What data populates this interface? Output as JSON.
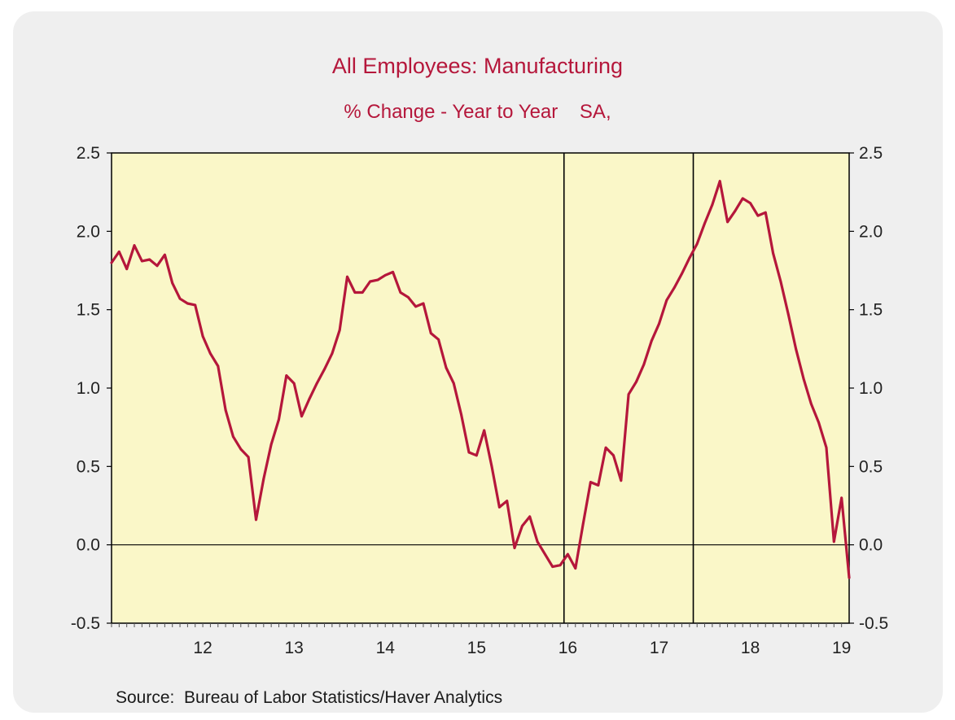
{
  "chart_data": {
    "type": "line",
    "title": "All Employees: Manufacturing",
    "subtitle": "% Change - Year to Year    SA,",
    "source": "Source:  Bureau of Labor Statistics/Haver Analytics",
    "xlabel": "",
    "ylabel": "",
    "ylim": [
      -0.5,
      2.5
    ],
    "yticks": [
      -0.5,
      0.0,
      0.5,
      1.0,
      1.5,
      2.0,
      2.5
    ],
    "ytick_labels": [
      "-0.5",
      "0.0",
      "0.5",
      "1.0",
      "1.5",
      "2.0",
      "2.5"
    ],
    "xlim": [
      2011.5,
      2019.5833
    ],
    "xtick_labels": [
      {
        "label": "12",
        "year": 2012
      },
      {
        "label": "13",
        "year": 2013
      },
      {
        "label": "14",
        "year": 2014
      },
      {
        "label": "15",
        "year": 2015
      },
      {
        "label": "16",
        "year": 2016
      },
      {
        "label": "17",
        "year": 2017
      },
      {
        "label": "18",
        "year": 2018
      },
      {
        "label": "19",
        "year": 2019
      }
    ],
    "vertical_markers": [
      2016.4583,
      2017.875
    ],
    "horizontal_reference": 0.0,
    "colors": {
      "series": "#b5173b",
      "plot_background": "#faf7c8",
      "title": "#b5173b",
      "axis": "#000000"
    },
    "series": [
      {
        "name": "All Employees: Manufacturing (% Change - Year to Year)",
        "x": [
          2011.5,
          2011.5833,
          2011.6667,
          2011.75,
          2011.8333,
          2011.9167,
          2012.0,
          2012.0833,
          2012.1667,
          2012.25,
          2012.3333,
          2012.4167,
          2012.5,
          2012.5833,
          2012.6667,
          2012.75,
          2012.8333,
          2012.9167,
          2013.0,
          2013.0833,
          2013.1667,
          2013.25,
          2013.3333,
          2013.4167,
          2013.5,
          2013.5833,
          2013.6667,
          2013.75,
          2013.8333,
          2013.9167,
          2014.0,
          2014.0833,
          2014.1667,
          2014.25,
          2014.3333,
          2014.4167,
          2014.5,
          2014.5833,
          2014.6667,
          2014.75,
          2014.8333,
          2014.9167,
          2015.0,
          2015.0833,
          2015.1667,
          2015.25,
          2015.3333,
          2015.4167,
          2015.5,
          2015.5833,
          2015.6667,
          2015.75,
          2015.8333,
          2015.9167,
          2016.0,
          2016.0833,
          2016.1667,
          2016.25,
          2016.3333,
          2016.4167,
          2016.5,
          2016.5833,
          2016.6667,
          2016.75,
          2016.8333,
          2016.9167,
          2017.0,
          2017.0833,
          2017.1667,
          2017.25,
          2017.3333,
          2017.4167,
          2017.5,
          2017.5833,
          2017.6667,
          2017.75,
          2017.8333,
          2017.9167,
          2018.0,
          2018.0833,
          2018.1667,
          2018.25,
          2018.3333,
          2018.4167,
          2018.5,
          2018.5833,
          2018.6667,
          2018.75,
          2018.8333,
          2018.9167,
          2019.0,
          2019.0833,
          2019.1667,
          2019.25,
          2019.3333,
          2019.4167,
          2019.5,
          2019.5833
        ],
        "values": [
          1.8,
          1.87,
          1.76,
          1.91,
          1.81,
          1.82,
          1.78,
          1.85,
          1.67,
          1.57,
          1.54,
          1.53,
          1.33,
          1.22,
          1.14,
          0.86,
          0.69,
          0.61,
          0.56,
          0.16,
          0.42,
          0.64,
          0.8,
          1.08,
          1.03,
          0.82,
          0.93,
          1.03,
          1.12,
          1.22,
          1.37,
          1.71,
          1.61,
          1.61,
          1.68,
          1.69,
          1.72,
          1.74,
          1.61,
          1.58,
          1.52,
          1.54,
          1.35,
          1.31,
          1.13,
          1.03,
          0.83,
          0.59,
          0.57,
          0.73,
          0.5,
          0.24,
          0.28,
          -0.02,
          0.12,
          0.18,
          0.02,
          -0.06,
          -0.14,
          -0.13,
          -0.06,
          -0.15,
          0.13,
          0.4,
          0.38,
          0.62,
          0.57,
          0.41,
          0.96,
          1.04,
          1.15,
          1.3,
          1.41,
          1.56,
          1.64,
          1.73,
          1.83,
          1.92,
          2.05,
          2.17,
          2.32,
          2.06,
          2.13,
          2.21,
          2.18,
          2.1,
          2.12,
          1.86,
          1.68,
          1.47,
          1.25,
          1.06,
          0.9,
          0.78,
          0.62,
          0.02,
          0.3,
          -0.21
        ]
      }
    ]
  }
}
